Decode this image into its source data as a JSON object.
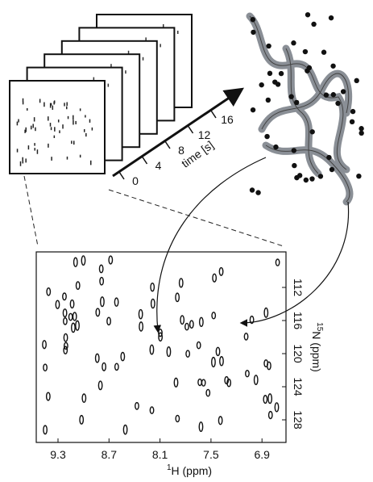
{
  "time_axis": {
    "label": "time [s]",
    "ticks": [
      "0",
      "4",
      "8",
      "12",
      "16"
    ]
  },
  "spectrum": {
    "x_label_sup": "1",
    "x_label": "H (ppm)",
    "x_ticks": [
      "9.3",
      "8.7",
      "8.1",
      "7.5",
      "6.9"
    ],
    "y_label_sup": "15",
    "y_label": "N (ppm)",
    "y_ticks": [
      "112",
      "116",
      "120",
      "124",
      "128"
    ]
  }
}
